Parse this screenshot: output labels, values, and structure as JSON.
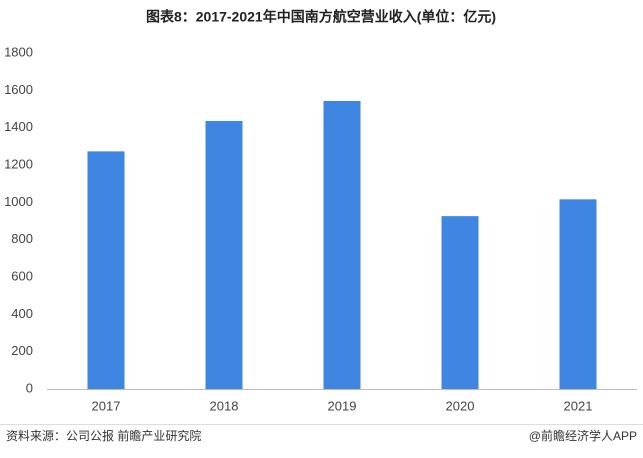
{
  "chart_data": {
    "type": "bar",
    "title": "图表8：2017-2021年中国南方航空营业收入(单位：亿元)",
    "categories": [
      "2017",
      "2018",
      "2019",
      "2020",
      "2021"
    ],
    "values": [
      1273,
      1436,
      1543,
      926,
      1016
    ],
    "color": "#3f86e2",
    "ylim": [
      0,
      1800
    ],
    "yticks": [
      0,
      200,
      400,
      600,
      800,
      1000,
      1200,
      1400,
      1600,
      1800
    ],
    "grid": false
  },
  "footer": {
    "source": "资料来源：公司公报 前瞻产业研究院",
    "credit": "@前瞻经济学人APP"
  }
}
